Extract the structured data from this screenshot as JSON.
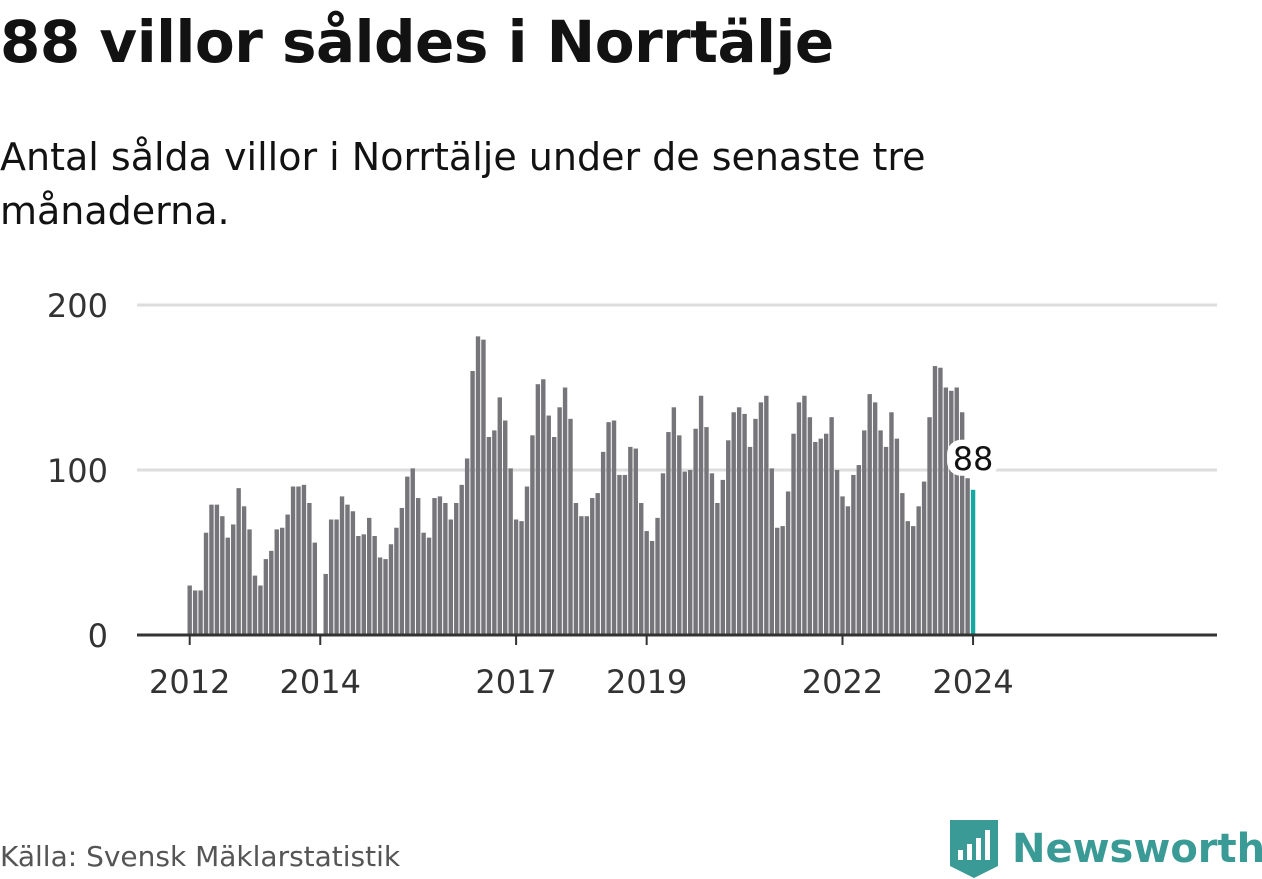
{
  "title": "88 villor såldes i Norrtälje",
  "subtitle": "Antal sålda villor i Norrtälje under de senaste tre månaderna.",
  "source": "Källa: Svensk Mäklarstatistik",
  "brand": "Newsworthy",
  "colors": {
    "bar": "#76767a",
    "highlight": "#17a8a1",
    "grid": "#dddddd",
    "axis": "#333333",
    "brand": "#3a9a95"
  },
  "chart_data": {
    "type": "bar",
    "title": "88 villor såldes i Norrtälje",
    "xlabel": "",
    "ylabel": "",
    "ylim": [
      0,
      200
    ],
    "yticks": [
      "0",
      "100",
      "200"
    ],
    "xticks": [
      "2012",
      "2014",
      "2017",
      "2019",
      "2022",
      "2024"
    ],
    "start": "2012-01",
    "end": "2024-01",
    "highlight_label": "88",
    "values": [
      30,
      27,
      27,
      62,
      79,
      79,
      72,
      59,
      67,
      89,
      78,
      64,
      36,
      30,
      46,
      51,
      64,
      65,
      73,
      90,
      90,
      91,
      80,
      56,
      0,
      37,
      70,
      70,
      84,
      79,
      75,
      60,
      61,
      71,
      60,
      47,
      46,
      55,
      65,
      77,
      96,
      101,
      83,
      62,
      59,
      83,
      84,
      80,
      70,
      80,
      91,
      107,
      160,
      181,
      179,
      120,
      124,
      144,
      130,
      101,
      70,
      69,
      90,
      121,
      152,
      155,
      133,
      120,
      138,
      150,
      131,
      80,
      72,
      72,
      83,
      86,
      111,
      129,
      130,
      97,
      97,
      114,
      113,
      80,
      63,
      57,
      71,
      98,
      123,
      138,
      121,
      99,
      100,
      125,
      145,
      126,
      98,
      80,
      94,
      118,
      135,
      138,
      134,
      114,
      131,
      141,
      145,
      101,
      65,
      66,
      87,
      122,
      141,
      145,
      132,
      117,
      119,
      122,
      132,
      100,
      84,
      78,
      97,
      103,
      124,
      146,
      141,
      124,
      114,
      135,
      119,
      86,
      69,
      66,
      78,
      93,
      132,
      163,
      162,
      150,
      148,
      150,
      135,
      95,
      88
    ]
  }
}
